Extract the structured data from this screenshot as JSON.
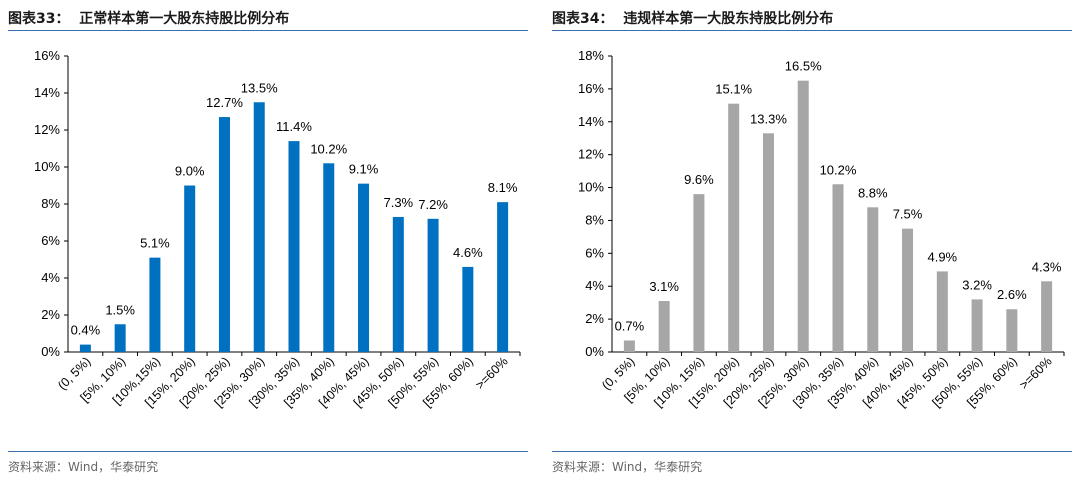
{
  "chart_data": [
    {
      "type": "bar",
      "title": "图表33：  正常样本第一大股东持股比例分布",
      "color": "#0070C0",
      "categories": [
        "(0, 5%)",
        "[5%, 10%)",
        "[10%,15%)",
        "[15%, 20%)",
        "[20%, 25%)",
        "[25%, 30%)",
        "[30%, 35%)",
        "[35%, 40%)",
        "[40%, 45%)",
        "[45%, 50%)",
        "[50%, 55%)",
        "[55%, 60%)",
        ">=60%"
      ],
      "values": [
        0.4,
        1.5,
        5.1,
        9.0,
        12.7,
        13.5,
        11.4,
        10.2,
        9.1,
        7.3,
        7.2,
        4.6,
        8.1
      ],
      "data_labels": [
        "0.4%",
        "1.5%",
        "5.1%",
        "9.0%",
        "12.7%",
        "13.5%",
        "11.4%",
        "10.2%",
        "9.1%",
        "7.3%",
        "7.2%",
        "4.6%",
        "8.1%"
      ],
      "yticks": [
        "0%",
        "2%",
        "4%",
        "6%",
        "8%",
        "10%",
        "12%",
        "14%",
        "16%"
      ],
      "ylim": [
        0,
        16
      ],
      "grid": false,
      "source": "资料来源：Wind，华泰研究"
    },
    {
      "type": "bar",
      "title": "图表34：  违规样本第一大股东持股比例分布",
      "color": "#A6A6A6",
      "categories": [
        "(0, 5%)",
        "[5%, 10%)",
        "[10%, 15%)",
        "[15%, 20%)",
        "[20%, 25%)",
        "[25%, 30%)",
        "[30%, 35%)",
        "[35%, 40%)",
        "[40%, 45%)",
        "[45%, 50%)",
        "[50%, 55%)",
        "[55%, 60%)",
        ">=60%"
      ],
      "values": [
        0.7,
        3.1,
        9.6,
        15.1,
        13.3,
        16.5,
        10.2,
        8.8,
        7.5,
        4.9,
        3.2,
        2.6,
        4.3
      ],
      "data_labels": [
        "0.7%",
        "3.1%",
        "9.6%",
        "15.1%",
        "13.3%",
        "16.5%",
        "10.2%",
        "8.8%",
        "7.5%",
        "4.9%",
        "3.2%",
        "2.6%",
        "4.3%"
      ],
      "yticks": [
        "0%",
        "2%",
        "4%",
        "6%",
        "8%",
        "10%",
        "12%",
        "14%",
        "16%",
        "18%"
      ],
      "ylim": [
        0,
        18
      ],
      "grid": false,
      "source": "资料来源：Wind，华泰研究"
    }
  ]
}
